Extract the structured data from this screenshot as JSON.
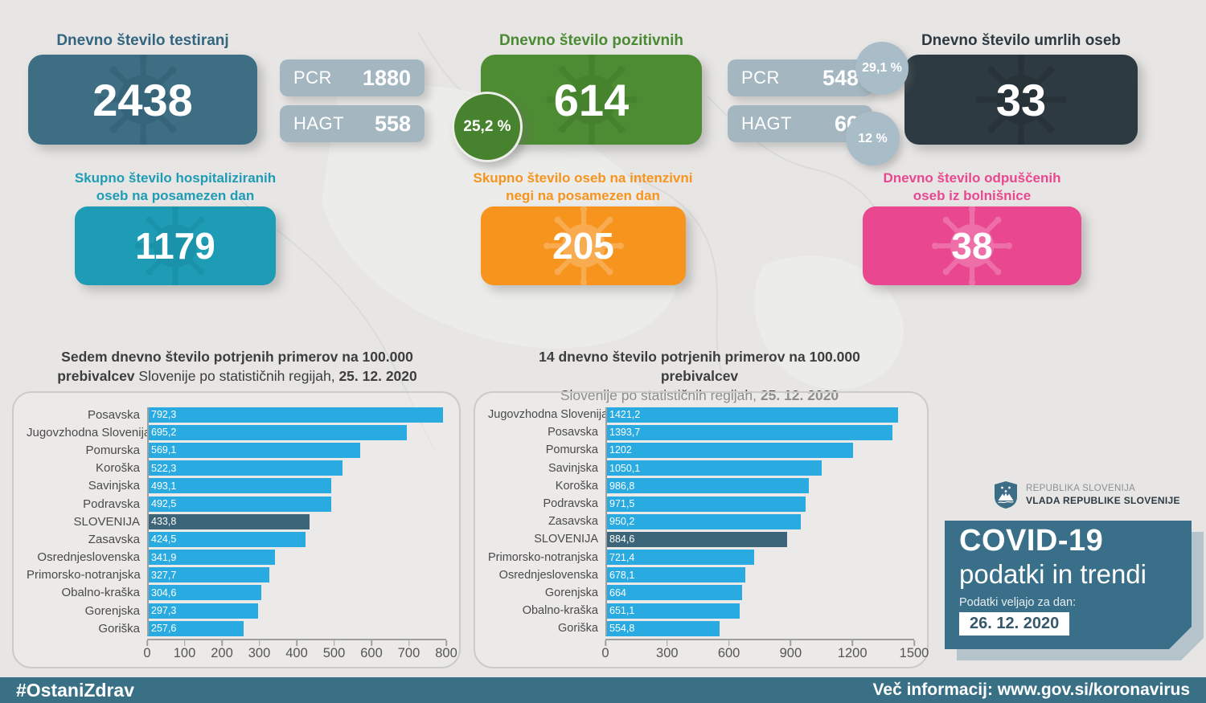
{
  "colors": {
    "background": "#e7e6e4",
    "card_blue": "#3d6e84",
    "card_green": "#4e8c33",
    "card_dark": "#2e3a42",
    "card_teal": "#1e9cb5",
    "card_orange": "#f7941e",
    "card_pink": "#e9478f",
    "pill_gray": "#a4b7c1",
    "bar_blue": "#29abe2",
    "bar_highlight": "#3d6579",
    "footer_bar": "#3a7086"
  },
  "stats": {
    "tested": {
      "title": "Dnevno število testiranj",
      "value": "2438",
      "pcr_label": "PCR",
      "pcr_value": "1880",
      "hagt_label": "HAGT",
      "hagt_value": "558"
    },
    "positive": {
      "title": "Dnevno število pozitivnih",
      "value": "614",
      "share_total": "25,2 %",
      "pcr_label": "PCR",
      "pcr_value": "548",
      "pcr_share": "29,1 %",
      "hagt_label": "HAGT",
      "hagt_value": "66",
      "hagt_share": "12 %"
    },
    "deaths": {
      "title": "Dnevno število umrlih oseb",
      "value": "33"
    },
    "hospitalized": {
      "title_line1": "Skupno število hospitaliziranih",
      "title_line2": "oseb na posamezen dan",
      "value": "1179"
    },
    "icu": {
      "title_line1": "Skupno število oseb na intenzivni",
      "title_line2": "negi na posamezen dan",
      "value": "205"
    },
    "discharged": {
      "title_line1": "Dnevno število odpuščenih",
      "title_line2": "oseb iz bolnišnice",
      "value": "38"
    }
  },
  "chart_data": [
    {
      "type": "bar",
      "orientation": "horizontal",
      "title": {
        "line1": "Sedem dnevno število potrjenih primerov na 100.000",
        "line2_bold_prefix": "prebivalcev",
        "line2_regular": " Slovenije po statističnih regijah, ",
        "date": "25. 12. 2020"
      },
      "categories": [
        "Posavska",
        "Jugovzhodna Slovenija",
        "Pomurska",
        "Koroška",
        "Savinjska",
        "Podravska",
        "SLOVENIJA",
        "Zasavska",
        "Osrednjeslovenska",
        "Primorsko-notranjska",
        "Obalno-kraška",
        "Gorenjska",
        "Goriška"
      ],
      "values": [
        792.3,
        695.2,
        569.1,
        522.3,
        493.1,
        492.5,
        433.8,
        424.5,
        341.9,
        327.7,
        304.6,
        297.3,
        257.6
      ],
      "value_labels": [
        "792,3",
        "695,2",
        "569,1",
        "522,3",
        "493,1",
        "492,5",
        "433,8",
        "424,5",
        "341,9",
        "327,7",
        "304,6",
        "297,3",
        "257,6"
      ],
      "highlight_category": "SLOVENIJA",
      "xlim": [
        0,
        800
      ],
      "xticks": [
        0,
        100,
        200,
        300,
        400,
        500,
        600,
        700,
        800
      ],
      "bar_color": "#29abe2",
      "highlight_color": "#3d6579",
      "grid": false,
      "legend": "none"
    },
    {
      "type": "bar",
      "orientation": "horizontal",
      "title": {
        "line1": "14 dnevno število potrjenih primerov na 100.000 prebivalcev",
        "line2_bold_prefix": "",
        "line2_regular": "Slovenije po statističnih regijah, ",
        "date": "25. 12. 2020"
      },
      "categories": [
        "Jugovzhodna Slovenija",
        "Posavska",
        "Pomurska",
        "Savinjska",
        "Koroška",
        "Podravska",
        "Zasavska",
        "SLOVENIJA",
        "Primorsko-notranjska",
        "Osrednjeslovenska",
        "Gorenjska",
        "Obalno-kraška",
        "Goriška"
      ],
      "values": [
        1421.2,
        1393.7,
        1202,
        1050.1,
        986.8,
        971.5,
        950.2,
        884.6,
        721.4,
        678.1,
        664,
        651.1,
        554.8
      ],
      "value_labels": [
        "1421,2",
        "1393,7",
        "1202",
        "1050,1",
        "986,8",
        "971,5",
        "950,2",
        "884,6",
        "721,4",
        "678,1",
        "664",
        "651,1",
        "554,8"
      ],
      "highlight_category": "SLOVENIJA",
      "xlim": [
        0,
        1500
      ],
      "xticks": [
        0,
        300,
        600,
        900,
        1200,
        1500
      ],
      "bar_color": "#29abe2",
      "highlight_color": "#3d6579",
      "grid": false,
      "legend": "none"
    }
  ],
  "branding": {
    "line1": "REPUBLIKA SLOVENIJA",
    "line2": "VLADA REPUBLIKE SLOVENIJE"
  },
  "info_card": {
    "title": "COVID-19",
    "subtitle": "podatki in trendi",
    "label": "Podatki veljajo za dan:",
    "date": "26. 12. 2020"
  },
  "footer": {
    "hashtag": "#OstaniZdrav",
    "more_info": "Več informacij: www.gov.si/koronavirus"
  }
}
